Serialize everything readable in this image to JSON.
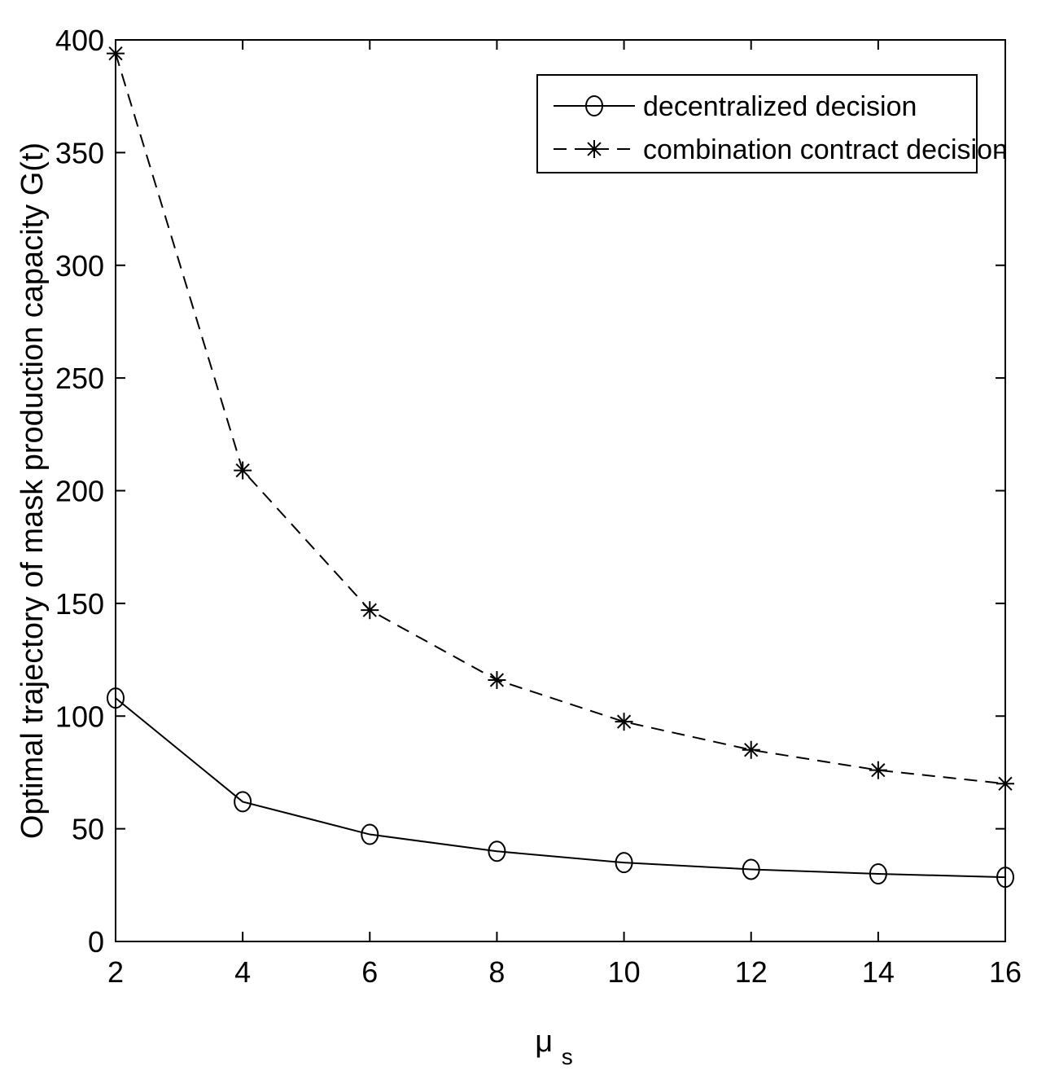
{
  "chart_data": {
    "type": "line",
    "xlabel_main": "μ",
    "xlabel_sub": "s",
    "ylabel": "Optimal trajectory of mask production capacity G(t)",
    "xlim": [
      2,
      16
    ],
    "ylim": [
      0,
      400
    ],
    "x_ticks": [
      2,
      4,
      6,
      8,
      10,
      12,
      14,
      16
    ],
    "y_ticks": [
      0,
      50,
      100,
      150,
      200,
      250,
      300,
      350,
      400
    ],
    "grid": false,
    "legend_position": "top-right",
    "x": [
      2,
      4,
      6,
      8,
      10,
      12,
      14,
      16
    ],
    "series": [
      {
        "name": "decentralized decision",
        "values": [
          108,
          62,
          47.5,
          40,
          35,
          32,
          30,
          28.5
        ],
        "marker": "circle",
        "line_style": "solid",
        "color": "#000000"
      },
      {
        "name": "combination contract decision",
        "values": [
          394,
          209,
          147,
          116,
          97.5,
          85,
          76,
          70
        ],
        "marker": "asterisk",
        "line_style": "dashed",
        "color": "#000000"
      }
    ]
  }
}
